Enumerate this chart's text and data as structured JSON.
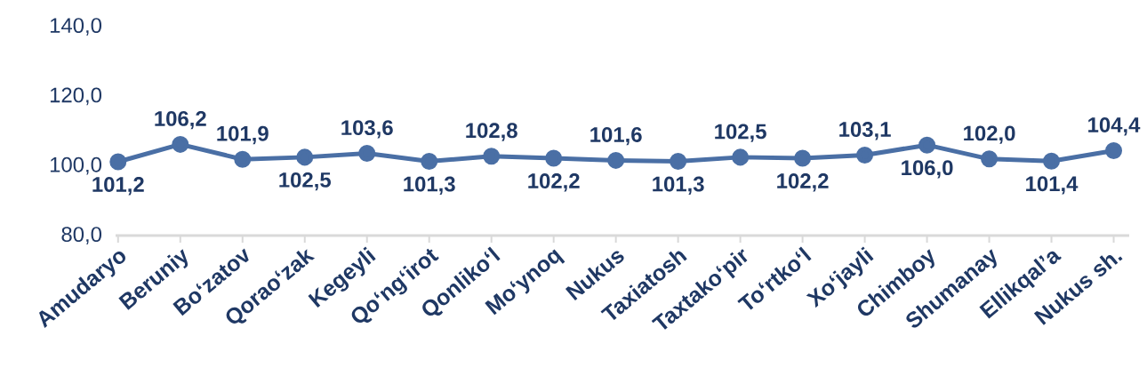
{
  "chart_data": {
    "type": "line",
    "categories": [
      "Amudaryo",
      "Beruniy",
      "Bo‘zatov",
      "Qorao‘zak",
      "Kegeyli",
      "Qo‘ng‘irot",
      "Qonliko‘l",
      "Mo‘ynoq",
      "Nukus",
      "Taxiatosh",
      "Taxtako‘pir",
      "To‘rtko‘l",
      "Xo‘jayli",
      "Chimboy",
      "Shumanay",
      "Ellikqal’a",
      "Nukus sh."
    ],
    "values": [
      101.2,
      106.2,
      101.9,
      102.5,
      103.6,
      101.3,
      102.8,
      102.2,
      101.6,
      101.3,
      102.5,
      102.2,
      103.1,
      106.0,
      102.0,
      101.4,
      104.4
    ],
    "value_labels": [
      "101,2",
      "106,2",
      "101,9",
      "102,5",
      "103,6",
      "101,3",
      "102,8",
      "102,2",
      "101,6",
      "101,3",
      "102,5",
      "102,2",
      "103,1",
      "106,0",
      "102,0",
      "101,4",
      "104,4"
    ],
    "color": "#4a6fa5",
    "marker": "circle",
    "ylim": [
      80,
      140
    ],
    "yticks": [
      {
        "value": 80,
        "label": "80,0"
      },
      {
        "value": 100,
        "label": "100,0"
      },
      {
        "value": 120,
        "label": "120,0"
      },
      {
        "value": 140,
        "label": "140,0"
      }
    ]
  }
}
